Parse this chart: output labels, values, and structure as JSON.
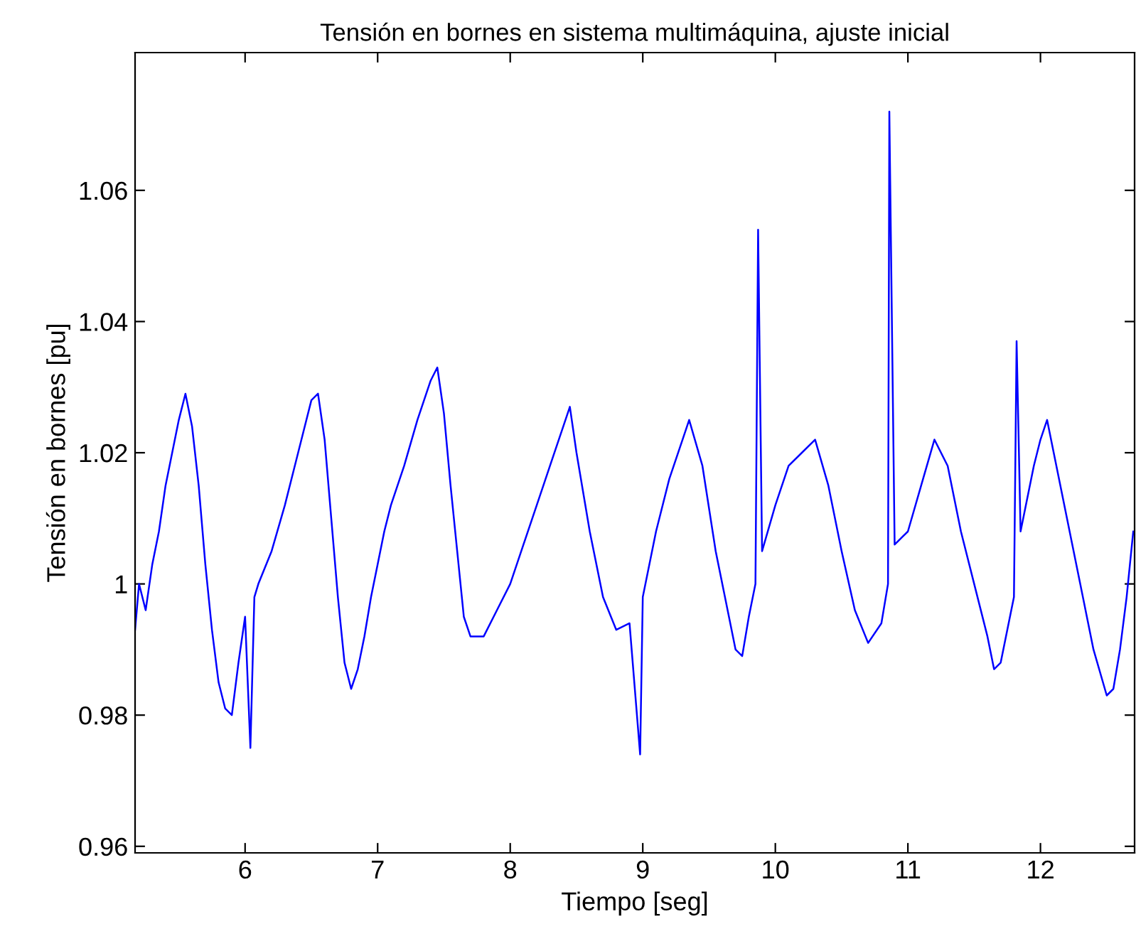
{
  "chart_data": {
    "type": "line",
    "title": "Tensión en bornes en sistema multimáquina, ajuste inicial",
    "xlabel": "Tiempo [seg]",
    "ylabel": "Tensión en bornes [pu]",
    "xlim": [
      5.17,
      12.71
    ],
    "ylim": [
      0.959,
      1.081
    ],
    "xticks": [
      6,
      7,
      8,
      9,
      10,
      11,
      12
    ],
    "yticks": [
      0.96,
      0.98,
      1,
      1.02,
      1.04,
      1.06
    ],
    "grid": false,
    "legend": false,
    "marker": "none",
    "line_style": "solid",
    "series": [
      {
        "color": "#0000ff",
        "x": [
          5.17,
          5.2,
          5.25,
          5.3,
          5.35,
          5.4,
          5.45,
          5.5,
          5.55,
          5.6,
          5.65,
          5.7,
          5.75,
          5.8,
          5.85,
          5.9,
          5.95,
          6.0,
          6.04,
          6.07,
          6.1,
          6.2,
          6.3,
          6.4,
          6.5,
          6.55,
          6.6,
          6.65,
          6.7,
          6.75,
          6.8,
          6.85,
          6.9,
          6.95,
          7.0,
          7.05,
          7.1,
          7.2,
          7.3,
          7.4,
          7.45,
          7.5,
          7.55,
          7.6,
          7.65,
          7.7,
          7.8,
          7.9,
          8.0,
          8.1,
          8.2,
          8.3,
          8.4,
          8.45,
          8.5,
          8.6,
          8.7,
          8.8,
          8.9,
          8.98,
          9.0,
          9.1,
          9.2,
          9.3,
          9.35,
          9.45,
          9.55,
          9.65,
          9.7,
          9.75,
          9.8,
          9.85,
          9.87,
          9.9,
          10.0,
          10.1,
          10.2,
          10.3,
          10.4,
          10.5,
          10.6,
          10.7,
          10.8,
          10.85,
          10.86,
          10.9,
          11.0,
          11.1,
          11.2,
          11.3,
          11.4,
          11.5,
          11.6,
          11.65,
          11.7,
          11.8,
          11.82,
          11.85,
          11.95,
          12.0,
          12.05,
          12.1,
          12.2,
          12.3,
          12.4,
          12.5,
          12.55,
          12.6,
          12.65,
          12.7
        ],
        "values": [
          0.993,
          1.0,
          0.996,
          1.003,
          1.008,
          1.015,
          1.02,
          1.025,
          1.029,
          1.024,
          1.015,
          1.003,
          0.993,
          0.985,
          0.981,
          0.98,
          0.988,
          0.995,
          0.975,
          0.998,
          1.0,
          1.005,
          1.012,
          1.02,
          1.028,
          1.029,
          1.022,
          1.01,
          0.998,
          0.988,
          0.984,
          0.987,
          0.992,
          0.998,
          1.003,
          1.008,
          1.012,
          1.018,
          1.025,
          1.031,
          1.033,
          1.026,
          1.015,
          1.005,
          0.995,
          0.992,
          0.992,
          0.996,
          1.0,
          1.006,
          1.012,
          1.018,
          1.024,
          1.027,
          1.02,
          1.008,
          0.998,
          0.993,
          0.994,
          0.974,
          0.998,
          1.008,
          1.016,
          1.022,
          1.025,
          1.018,
          1.005,
          0.995,
          0.99,
          0.989,
          0.995,
          1.0,
          1.054,
          1.005,
          1.012,
          1.018,
          1.02,
          1.022,
          1.015,
          1.005,
          0.996,
          0.991,
          0.994,
          1.0,
          1.072,
          1.006,
          1.008,
          1.015,
          1.022,
          1.018,
          1.008,
          1.0,
          0.992,
          0.987,
          0.988,
          0.998,
          1.037,
          1.008,
          1.018,
          1.022,
          1.025,
          1.02,
          1.01,
          1.0,
          0.99,
          0.983,
          0.984,
          0.99,
          0.998,
          1.008
        ]
      }
    ]
  }
}
